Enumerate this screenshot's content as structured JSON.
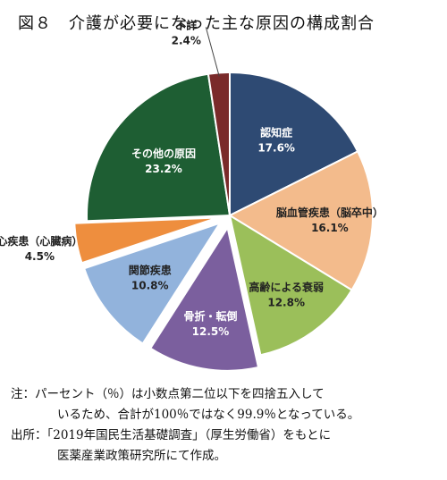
{
  "title": "図８　介護が必要になった主な原因の構成割合",
  "chart_data": {
    "type": "pie",
    "categories": [
      "認知症",
      "脳血管疾患（脳卒中）",
      "高齢による衰弱",
      "骨折・転倒",
      "関節疾患",
      "心疾患（心臓病）",
      "その他の原因",
      "不詳"
    ],
    "values": [
      17.6,
      16.1,
      12.8,
      12.5,
      10.8,
      4.5,
      23.2,
      2.4
    ],
    "value_labels": [
      "17.6%",
      "16.1%",
      "12.8%",
      "12.5%",
      "10.8%",
      "4.5%",
      "23.2%",
      "2.4%"
    ],
    "colors": [
      "#2e4a73",
      "#f3bb8c",
      "#9bbf5a",
      "#7b5f9e",
      "#92b3dc",
      "#ee8e3e",
      "#1e5e33",
      "#7a2a2a"
    ],
    "label_colors": [
      "#ffffff",
      "#222222",
      "#222222",
      "#ffffff",
      "#222222",
      "#222222",
      "#ffffff",
      "#222222"
    ],
    "exploded": [
      false,
      false,
      false,
      true,
      true,
      true,
      false,
      false
    ]
  },
  "notes": [
    "注：パーセント（％）は小数点第二位以下を四捨五入して",
    "いるため、合計が100％ではなく99.9％となっている。",
    "出所：「2019年国民生活基礎調査」（厚生労働省）をもとに",
    "医薬産業政策研究所にて作成。"
  ]
}
